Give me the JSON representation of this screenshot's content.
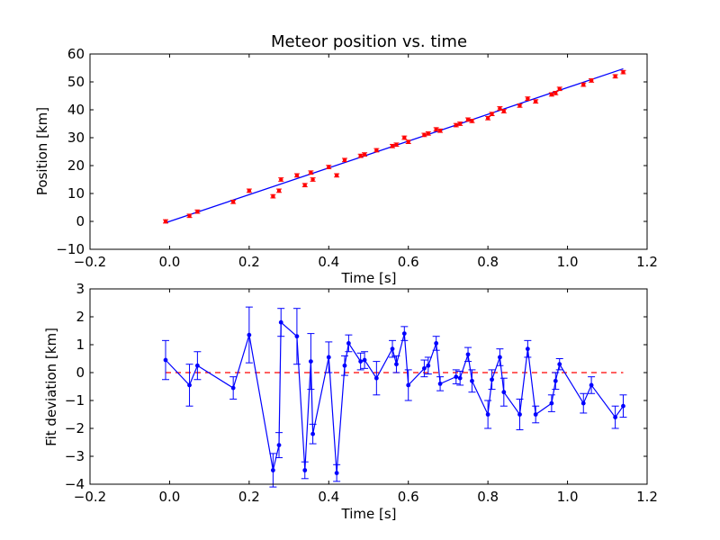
{
  "chart_data": [
    {
      "type": "scatter",
      "title": "Meteor position vs. time",
      "xlabel": "Time [s]",
      "ylabel": "Position [km]",
      "xlim": [
        -0.2,
        1.2
      ],
      "ylim": [
        -10,
        60
      ],
      "xticks": [
        -0.2,
        0.0,
        0.2,
        0.4,
        0.6,
        0.8,
        1.0,
        1.2
      ],
      "yticks": [
        -10,
        0,
        10,
        20,
        30,
        40,
        50,
        60
      ],
      "xtick_labels": [
        "−0.2",
        "0.0",
        "0.2",
        "0.4",
        "0.6",
        "0.8",
        "1.0",
        "1.2"
      ],
      "ytick_labels": [
        "−10",
        "0",
        "10",
        "20",
        "30",
        "40",
        "50",
        "60"
      ],
      "colors": {
        "points": "#ff0000",
        "fit": "#0000ff"
      },
      "points": {
        "x": [
          -0.01,
          0.05,
          0.07,
          0.16,
          0.2,
          0.26,
          0.275,
          0.28,
          0.32,
          0.34,
          0.355,
          0.36,
          0.4,
          0.42,
          0.44,
          0.48,
          0.49,
          0.52,
          0.56,
          0.57,
          0.59,
          0.6,
          0.64,
          0.65,
          0.67,
          0.68,
          0.72,
          0.73,
          0.75,
          0.76,
          0.8,
          0.81,
          0.83,
          0.84,
          0.88,
          0.9,
          0.92,
          0.96,
          0.97,
          0.98,
          1.04,
          1.06,
          1.12,
          1.14
        ],
        "y": [
          0.0,
          2.0,
          3.5,
          7.0,
          11.0,
          9.0,
          11.0,
          15.0,
          16.5,
          13.0,
          17.5,
          15.0,
          19.5,
          16.5,
          22.0,
          23.5,
          24.0,
          25.5,
          27.0,
          27.5,
          30.0,
          28.5,
          31.0,
          31.5,
          33.0,
          32.5,
          34.5,
          35.0,
          36.5,
          36.0,
          37.0,
          38.5,
          40.5,
          39.5,
          41.5,
          44.0,
          43.0,
          45.5,
          46.0,
          47.5,
          49.0,
          50.5,
          52.0,
          53.5
        ],
        "yerr": 0.6
      },
      "fit_line": {
        "x": [
          -0.01,
          1.14
        ],
        "y": [
          -0.5,
          54.7
        ]
      }
    },
    {
      "type": "line",
      "xlabel": "Time [s]",
      "ylabel": "Fit deviation [km]",
      "xlim": [
        -0.2,
        1.2
      ],
      "ylim": [
        -4,
        3
      ],
      "xticks": [
        -0.2,
        0.0,
        0.2,
        0.4,
        0.6,
        0.8,
        1.0,
        1.2
      ],
      "yticks": [
        -4,
        -3,
        -2,
        -1,
        0,
        1,
        2,
        3
      ],
      "xtick_labels": [
        "−0.2",
        "0.0",
        "0.2",
        "0.4",
        "0.6",
        "0.8",
        "1.0",
        "1.2"
      ],
      "ytick_labels": [
        "−4",
        "−3",
        "−2",
        "−1",
        "0",
        "1",
        "2",
        "3"
      ],
      "colors": {
        "series": "#0000ff",
        "zero_line": "#ff0000"
      },
      "zero_line": 0,
      "series": {
        "x": [
          -0.01,
          0.05,
          0.07,
          0.16,
          0.2,
          0.26,
          0.275,
          0.28,
          0.32,
          0.34,
          0.355,
          0.36,
          0.4,
          0.42,
          0.44,
          0.45,
          0.48,
          0.49,
          0.52,
          0.56,
          0.57,
          0.59,
          0.6,
          0.64,
          0.65,
          0.67,
          0.68,
          0.72,
          0.73,
          0.75,
          0.76,
          0.8,
          0.81,
          0.83,
          0.84,
          0.88,
          0.9,
          0.92,
          0.96,
          0.97,
          0.98,
          1.04,
          1.06,
          1.12,
          1.14
        ],
        "y": [
          0.45,
          -0.45,
          0.25,
          -0.55,
          1.35,
          -3.5,
          -2.6,
          1.8,
          1.3,
          -3.5,
          0.4,
          -2.2,
          0.55,
          -3.6,
          0.25,
          1.05,
          0.4,
          0.45,
          -0.2,
          0.85,
          0.3,
          1.4,
          -0.45,
          0.15,
          0.25,
          1.05,
          -0.4,
          -0.15,
          -0.2,
          0.65,
          -0.3,
          -1.5,
          -0.25,
          0.55,
          -0.7,
          -1.5,
          0.85,
          -1.5,
          -1.1,
          -0.3,
          0.3,
          -1.1,
          -0.45,
          -1.6,
          -1.2
        ],
        "yerr": [
          0.7,
          0.75,
          0.5,
          0.4,
          1.0,
          0.6,
          0.45,
          0.5,
          1.0,
          0.3,
          1.0,
          0.35,
          0.55,
          0.3,
          0.35,
          0.3,
          0.3,
          0.3,
          0.6,
          0.3,
          0.3,
          0.25,
          0.55,
          0.3,
          0.3,
          0.25,
          0.25,
          0.25,
          0.25,
          0.25,
          0.4,
          0.5,
          0.35,
          0.3,
          0.5,
          0.55,
          0.3,
          0.3,
          0.3,
          0.3,
          0.2,
          0.35,
          0.3,
          0.4,
          0.4
        ]
      }
    }
  ]
}
